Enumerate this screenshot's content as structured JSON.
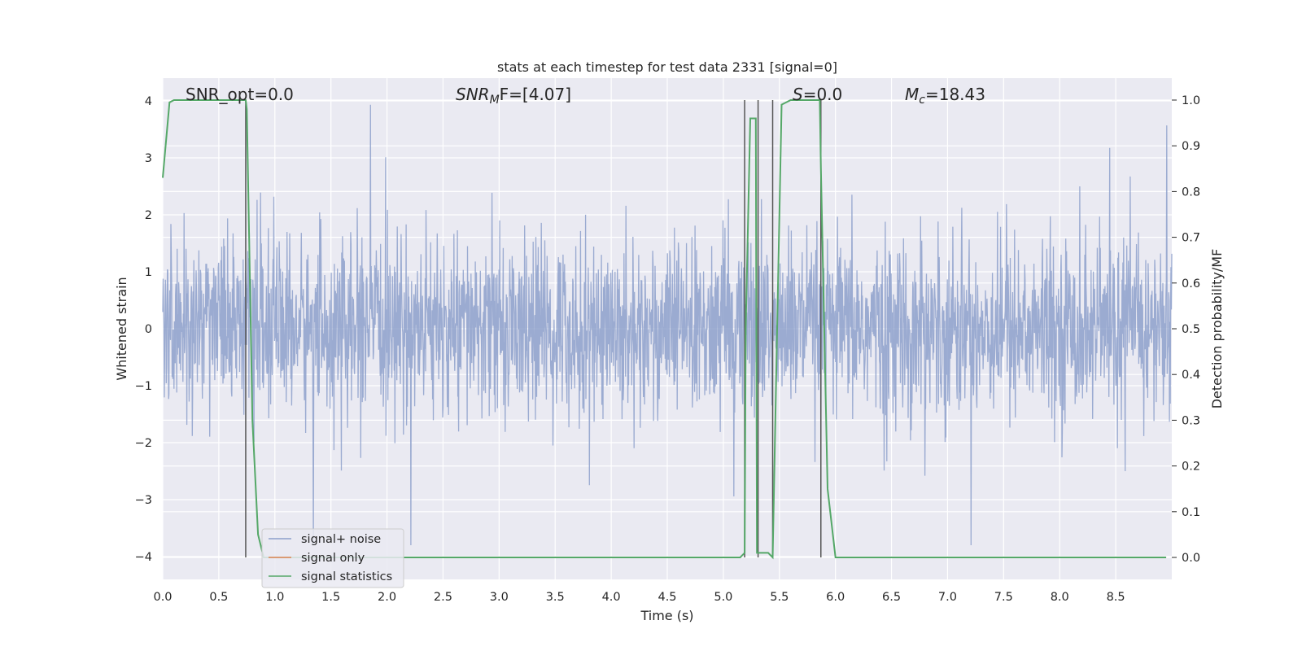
{
  "chart_data": {
    "type": "line",
    "title": "stats at each timestep for test data 2331 [signal=0]",
    "xlabel": "Time (s)",
    "ylabel_left": "Whitened strain",
    "ylabel_right": "Detection probability/MF",
    "xlim": [
      0.0,
      9.0
    ],
    "ylim_left": [
      -4.4,
      4.4
    ],
    "ylim_right": [
      -0.048,
      1.048
    ],
    "xticks": [
      "0.0",
      "0.5",
      "1.0",
      "1.5",
      "2.0",
      "2.5",
      "3.0",
      "3.5",
      "4.0",
      "4.5",
      "5.0",
      "5.5",
      "6.0",
      "6.5",
      "7.0",
      "7.5",
      "8.0",
      "8.5"
    ],
    "yticks_left": [
      "4",
      "3",
      "2",
      "1",
      "0",
      "−1",
      "−2",
      "−3",
      "−4"
    ],
    "yticks_right": [
      "1.0",
      "0.9",
      "0.8",
      "0.7",
      "0.6",
      "0.5",
      "0.4",
      "0.3",
      "0.2",
      "0.1",
      "0.0"
    ],
    "grid": true,
    "legend_position": "lower-left",
    "annotations": {
      "snr_opt": "SNR_opt=0.0",
      "snr_mf_sym": "SNR",
      "snr_mf_sub": "M",
      "snr_mf_rest": "F=[4.07]",
      "s_sym": "S",
      "s_rest": "=0.0",
      "mc_sym": "M",
      "mc_sub": "c",
      "mc_rest": "=18.43"
    },
    "series": [
      {
        "name": "signal+ noise",
        "color": "#8da0cb",
        "axis": "left",
        "description_style": "noise",
        "approx_std": 0.75,
        "approx_peak_range": [
          -3.8,
          4.0
        ]
      },
      {
        "name": "signal only",
        "color": "#dd8452",
        "axis": "left",
        "values": []
      },
      {
        "name": "signal statistics",
        "color": "#55a868",
        "axis": "right",
        "x": [
          0.0,
          0.06,
          0.1,
          0.2,
          0.3,
          0.4,
          0.5,
          0.6,
          0.7,
          0.74,
          0.75,
          0.8,
          0.85,
          0.9,
          1.0,
          2.0,
          3.0,
          4.0,
          5.0,
          5.15,
          5.19,
          5.2,
          5.24,
          5.29,
          5.3,
          5.35,
          5.4,
          5.44,
          5.48,
          5.52,
          5.6,
          5.7,
          5.8,
          5.86,
          5.87,
          5.93,
          6.0,
          7.0,
          8.0,
          8.95
        ],
        "values": [
          0.83,
          0.995,
          1.0,
          1.0,
          1.0,
          1.0,
          1.0,
          1.0,
          1.0,
          1.0,
          0.98,
          0.3,
          0.05,
          0.0,
          0.0,
          0.0,
          0.0,
          0.0,
          0.0,
          0.0,
          0.01,
          0.5,
          0.96,
          0.96,
          0.01,
          0.01,
          0.01,
          0.0,
          0.5,
          0.99,
          1.0,
          1.0,
          1.0,
          1.0,
          0.85,
          0.15,
          0.0,
          0.0,
          0.0,
          0.0
        ]
      }
    ],
    "vertical_lines_x": [
      0.74,
      5.19,
      5.31,
      5.44,
      5.87
    ],
    "vertical_lines_color": "#555555"
  }
}
